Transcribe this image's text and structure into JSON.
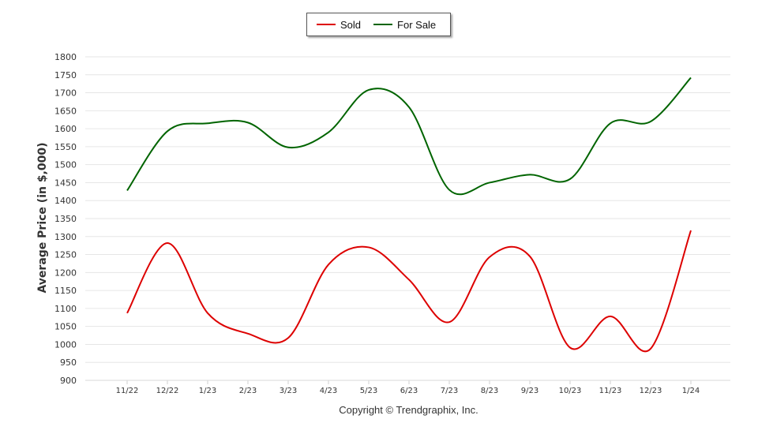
{
  "chart_data": {
    "type": "line",
    "categories": [
      "11/22",
      "12/22",
      "1/23",
      "2/23",
      "3/23",
      "4/23",
      "5/23",
      "6/23",
      "7/23",
      "8/23",
      "9/23",
      "10/23",
      "11/23",
      "12/23",
      "1/24"
    ],
    "series": [
      {
        "name": "Sold",
        "color": "#dd0000",
        "values": [
          1087,
          1282,
          1087,
          1030,
          1018,
          1222,
          1270,
          1180,
          1062,
          1243,
          1245,
          991,
          1078,
          988,
          1317
        ]
      },
      {
        "name": "For Sale",
        "color": "#006400",
        "values": [
          1428,
          1593,
          1615,
          1617,
          1548,
          1590,
          1708,
          1660,
          1430,
          1450,
          1472,
          1460,
          1615,
          1620,
          1742
        ]
      }
    ],
    "ylabel": "Average Price  (in $,000)",
    "xlabel": "",
    "ylim": [
      900,
      1800
    ],
    "yticks": [
      900,
      950,
      1000,
      1050,
      1100,
      1150,
      1200,
      1250,
      1300,
      1350,
      1400,
      1450,
      1500,
      1550,
      1600,
      1650,
      1700,
      1750,
      1800
    ],
    "grid": true,
    "legend_position": "top-center"
  },
  "copyright": "Copyright © Trendgraphix, Inc."
}
